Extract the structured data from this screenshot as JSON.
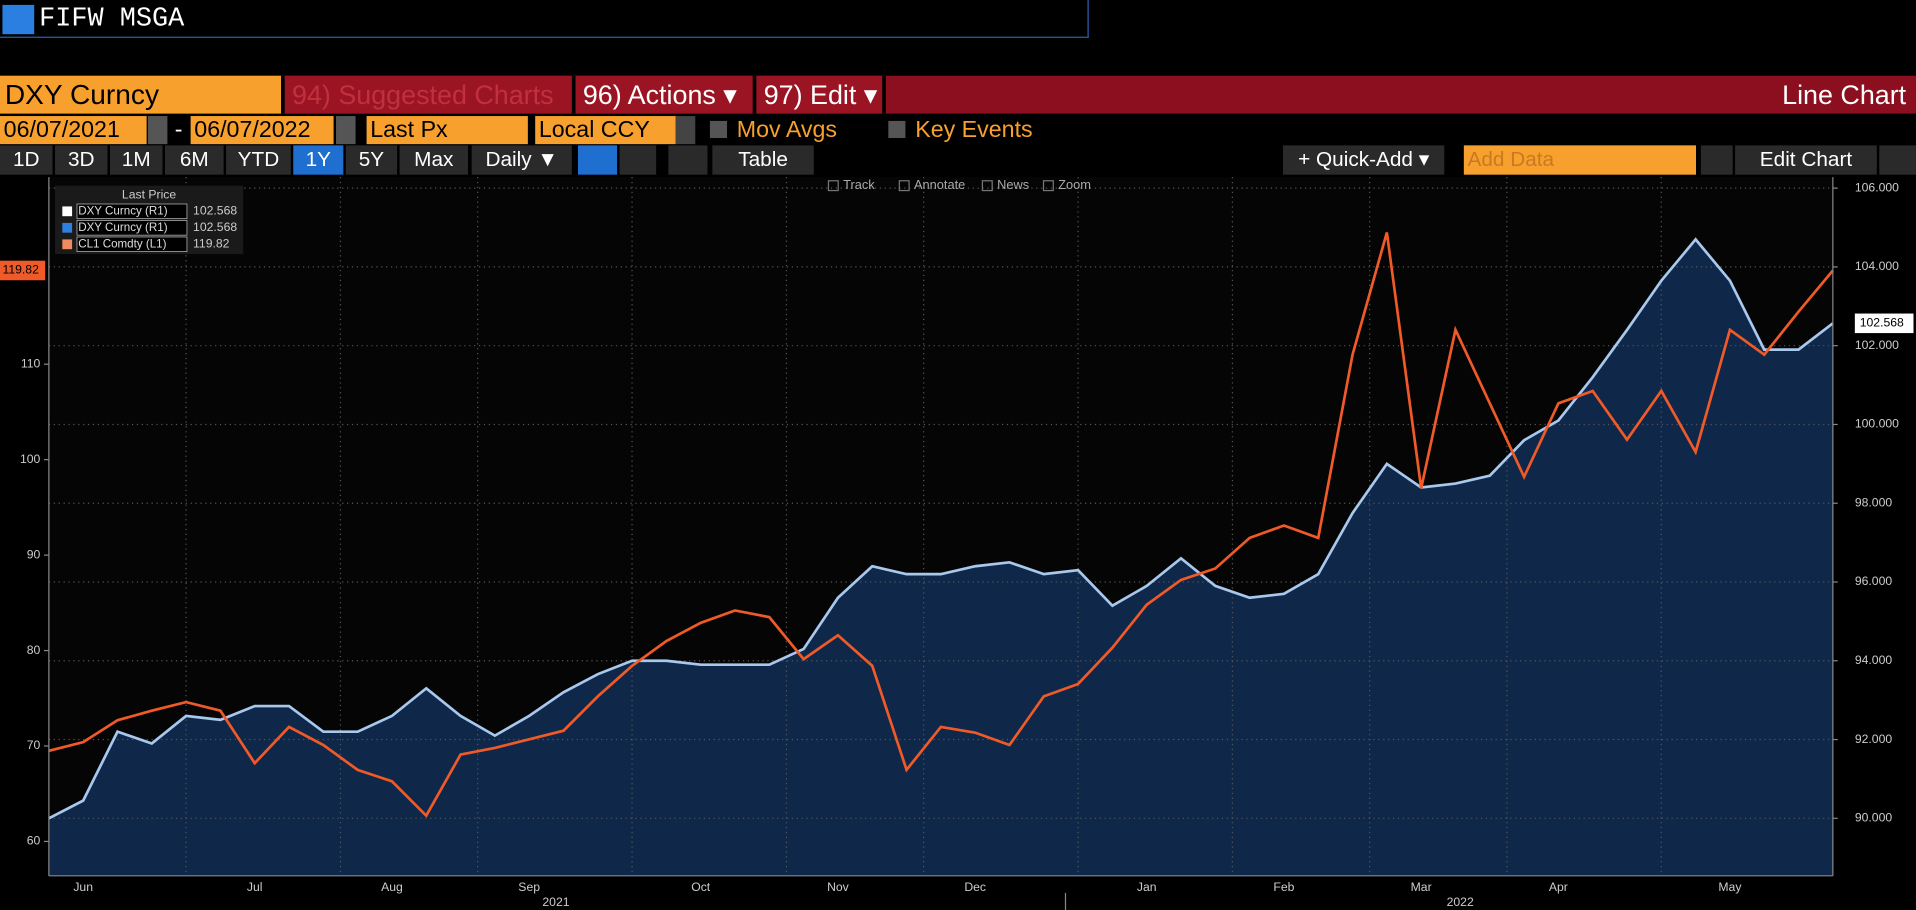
{
  "command_line": "FIFW MSGA",
  "toolbar": {
    "security": "DXY Curncy",
    "menus": [
      "94) Suggested Charts",
      "96) Actions ▾",
      "97) Edit ▾"
    ],
    "chart_type": "Line Chart",
    "start_date": "06/07/2021",
    "date_sep": "-",
    "end_date": "06/07/2022",
    "field": "Last Px",
    "currency": "Local CCY",
    "options": [
      "Mov Avgs",
      "Key Events"
    ],
    "ranges": [
      "1D",
      "3D",
      "1M",
      "6M",
      "YTD",
      "1Y",
      "5Y",
      "Max"
    ],
    "frequency": "Daily ▼",
    "table": "Table",
    "quick_add": "+ Quick-Add ▾",
    "add_data": "Add Data",
    "edit_chart": "Edit Chart"
  },
  "chart_tools": [
    "Track",
    "Annotate",
    "News",
    "Zoom"
  ],
  "chart_data": {
    "type": "line",
    "legend_title": "Last Price",
    "legend": [
      {
        "name": "DXY Curncy  (R1)",
        "color": "#ffffff"
      },
      {
        "name": "DXY Curncy  (R1)",
        "color": "#2f7fe0"
      },
      {
        "name": "CL1 Comdty  (L1)",
        "color": "#f08a60"
      }
    ],
    "categories": [
      null,
      "Jun",
      null,
      null,
      null,
      null,
      "Jul",
      null,
      null,
      null,
      "Aug",
      null,
      null,
      null,
      "Sep",
      null,
      null,
      null,
      null,
      "Oct",
      null,
      null,
      null,
      "Nov",
      null,
      null,
      null,
      "Dec",
      null,
      null,
      null,
      null,
      "Jan",
      null,
      null,
      null,
      "Feb",
      null,
      null,
      null,
      "Mar",
      null,
      null,
      null,
      "Apr",
      null,
      null,
      null,
      null,
      "May",
      null,
      null,
      null
    ],
    "years": [
      "2021",
      "2022"
    ],
    "series": [
      {
        "color": "#a9c8ee",
        "fill": "#0f2849",
        "axis": "y2",
        "values": [
          90.0,
          90.45,
          92.2,
          91.9,
          92.6,
          92.5,
          92.85,
          92.85,
          92.2,
          92.2,
          92.6,
          93.3,
          92.6,
          92.1,
          92.6,
          93.2,
          93.66,
          94.0,
          94.0,
          93.9,
          93.9,
          93.9,
          94.3,
          95.6,
          96.4,
          96.2,
          96.2,
          96.4,
          96.5,
          96.2,
          96.3,
          95.4,
          95.9,
          96.6,
          95.9,
          95.6,
          95.7,
          96.2,
          97.75,
          99.0,
          98.4,
          98.5,
          98.7,
          99.6,
          100.1,
          101.2,
          102.4,
          103.65,
          104.7,
          103.65,
          101.9,
          101.9,
          102.568
        ]
      },
      {
        "color": "#f05a28",
        "values": [
          69.5,
          70.4,
          72.7,
          73.7,
          74.6,
          73.7,
          68.2,
          72.0,
          70.1,
          67.5,
          66.3,
          62.7,
          69.1,
          69.8,
          70.7,
          71.6,
          75.2,
          78.4,
          81.0,
          82.9,
          84.2,
          83.5,
          79.1,
          81.6,
          78.4,
          67.5,
          72.0,
          71.4,
          70.1,
          75.2,
          76.5,
          80.3,
          84.8,
          87.4,
          88.6,
          91.8,
          93.1,
          91.8,
          111.0,
          123.8,
          97.0,
          113.6,
          105.9,
          98.2,
          105.9,
          107.2,
          102.1,
          107.2,
          100.8,
          113.6,
          111.0,
          115.5,
          119.82
        ]
      }
    ],
    "ylim": [
      56.4,
      129.6
    ],
    "yticks": [
      60,
      70,
      80,
      90,
      100,
      110
    ],
    "y2lim": [
      88.54,
      106.28
    ],
    "y2ticks": [
      {
        "value": 90,
        "label": "90.000"
      },
      {
        "value": 92,
        "label": "92.000"
      },
      {
        "value": 94,
        "label": "94.000"
      },
      {
        "value": 96,
        "label": "96.000"
      },
      {
        "value": 98,
        "label": "98.000"
      },
      {
        "value": 100,
        "label": "100.000"
      },
      {
        "value": 102,
        "label": "102.000"
      },
      {
        "value": 104,
        "label": "104.000"
      },
      {
        "value": 106,
        "label": "106.000"
      }
    ],
    "grid": true
  }
}
